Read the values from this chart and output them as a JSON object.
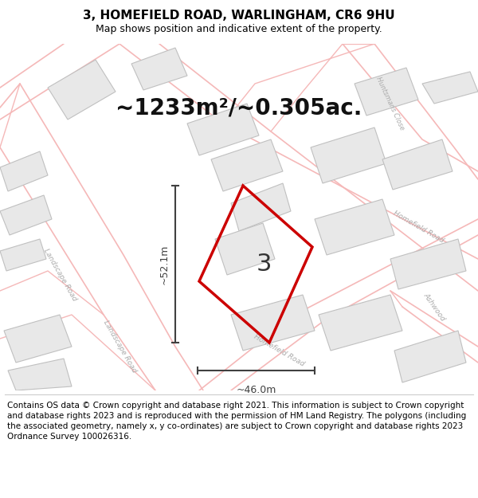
{
  "title": "3, HOMEFIELD ROAD, WARLINGHAM, CR6 9HU",
  "subtitle": "Map shows position and indicative extent of the property.",
  "area_text": "~1233m²/~0.305ac.",
  "label": "3",
  "dim_vertical": "~52.1m",
  "dim_horizontal": "~46.0m",
  "footer": "Contains OS data © Crown copyright and database right 2021. This information is subject to Crown copyright and database rights 2023 and is reproduced with the permission of HM Land Registry. The polygons (including the associated geometry, namely x, y co-ordinates) are subject to Crown copyright and database rights 2023 Ordnance Survey 100026316.",
  "map_bg": "#ffffff",
  "road_outline_color": "#f5b8b8",
  "road_fill_color": "#ffffff",
  "building_face_color": "#e8e8e8",
  "building_edge_color": "#c0c0c0",
  "property_edge_color": "#cc0000",
  "property_lw": 2.5,
  "dim_color": "#404040",
  "road_label_color": "#aaaaaa",
  "title_fontsize": 11,
  "subtitle_fontsize": 9,
  "area_fontsize": 20,
  "label_fontsize": 22,
  "footer_fontsize": 7.5,
  "dim_fontsize": 9
}
